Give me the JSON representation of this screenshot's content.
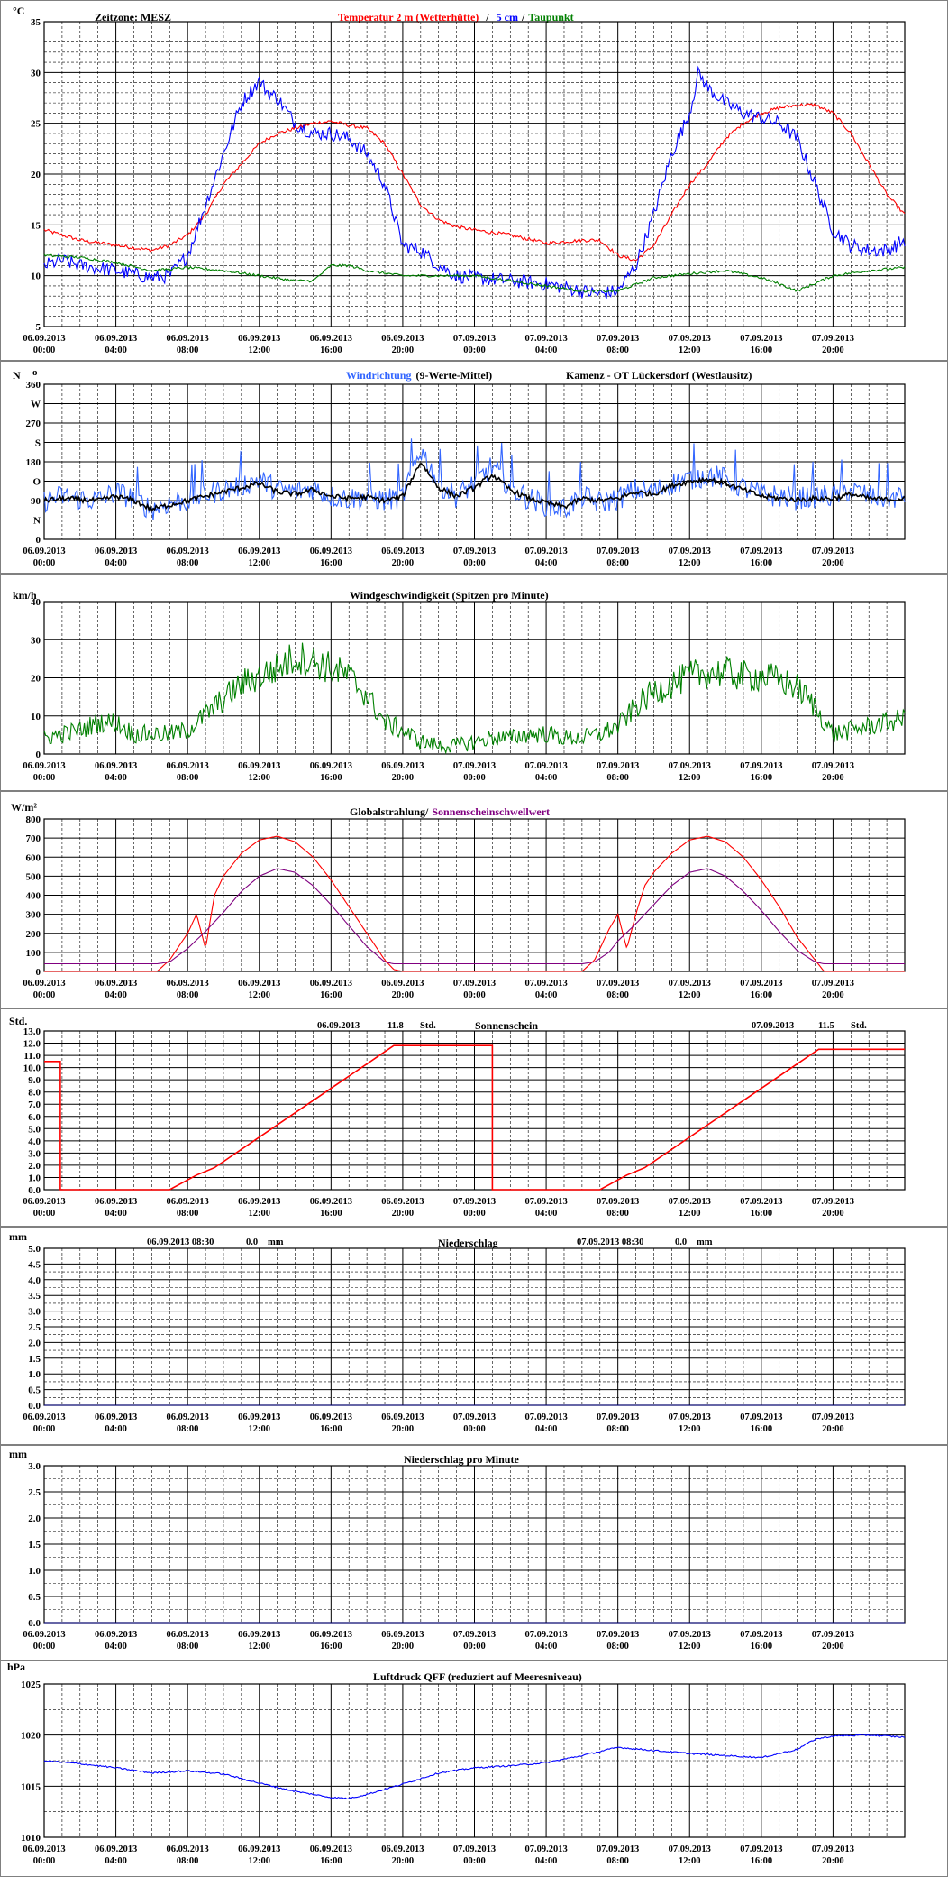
{
  "colors": {
    "red": "#ff0000",
    "blue": "#0000ff",
    "green": "#008000",
    "lightblue": "#3366ff",
    "purple": "#800080",
    "grid": "#000000",
    "panel_border": "#808080"
  },
  "x_axis": {
    "ticks": [
      {
        "date": "06.09.2013",
        "time": "00:00"
      },
      {
        "date": "06.09.2013",
        "time": "04:00"
      },
      {
        "date": "06.09.2013",
        "time": "08:00"
      },
      {
        "date": "06.09.2013",
        "time": "12:00"
      },
      {
        "date": "06.09.2013",
        "time": "16:00"
      },
      {
        "date": "06.09.2013",
        "time": "20:00"
      },
      {
        "date": "07.09.2013",
        "time": "00:00"
      },
      {
        "date": "07.09.2013",
        "time": "04:00"
      },
      {
        "date": "07.09.2013",
        "time": "08:00"
      },
      {
        "date": "07.09.2013",
        "time": "12:00"
      },
      {
        "date": "07.09.2013",
        "time": "16:00"
      },
      {
        "date": "07.09.2013",
        "time": "20:00"
      }
    ],
    "range_hours": [
      0,
      48
    ]
  },
  "panels": {
    "temp": {
      "unit": "°C",
      "zone": "Zeitzone: MESZ",
      "title_red": "Temperatur 2 m (Wetterhütte)",
      "title_sep1": "/",
      "title_blue": "5 cm",
      "title_sep2": "/",
      "title_green": "Taupunkt",
      "yticks": [
        "35",
        "30",
        "25",
        "20",
        "15",
        "10",
        "5"
      ]
    },
    "wind_dir": {
      "unit": "N",
      "deg_mark": "o",
      "title_blue": "Windrichtung",
      "title_black": "(9-Werte-Mittel)",
      "station": "Kamenz - OT Lückersdorf (Westlausitz)",
      "yticks": [
        "360",
        "W",
        "270",
        "S",
        "180",
        "O",
        "90",
        "N",
        "0"
      ]
    },
    "wind_speed": {
      "unit": "km/h",
      "title": "Windgeschwindigkeit (Spitzen pro Minute)",
      "yticks": [
        "40",
        "30",
        "20",
        "10",
        "0"
      ]
    },
    "radiation": {
      "unit": "W/m²",
      "title_black": "Globalstrahlung/",
      "title_purple": "Sonnenscheinschwellwert",
      "yticks": [
        "800",
        "700",
        "600",
        "500",
        "400",
        "300",
        "200",
        "100",
        "0"
      ]
    },
    "sunshine": {
      "unit": "Std.",
      "title": "Sonnenschein",
      "sum1_date": "06.09.2013",
      "sum1_value": "11.8",
      "sum1_unit": "Std.",
      "sum2_date": "07.09.2013",
      "sum2_value": "11.5",
      "sum2_unit": "Std.",
      "yticks": [
        "13.0",
        "12.0",
        "11.0",
        "10.0",
        "9.0",
        "8.0",
        "7.0",
        "6.0",
        "5.0",
        "4.0",
        "3.0",
        "2.0",
        "1.0",
        "0.0"
      ]
    },
    "precip": {
      "unit": "mm",
      "title": "Niederschlag",
      "sum1_label": "06.09.2013 08:30",
      "sum1_value": "0.0",
      "sum1_unit": "mm",
      "sum2_label": "07.09.2013 08:30",
      "sum2_value": "0.0",
      "sum2_unit": "mm",
      "yticks": [
        "5.0",
        "4.5",
        "4.0",
        "3.5",
        "3.0",
        "2.5",
        "2.0",
        "1.5",
        "1.0",
        "0.5",
        "0.0"
      ]
    },
    "precip_min": {
      "unit": "mm",
      "title": "Niederschlag pro Minute",
      "yticks": [
        "3.0",
        "2.5",
        "2.0",
        "1.5",
        "1.0",
        "0.5",
        "0.0"
      ]
    },
    "pressure": {
      "unit": "hPa",
      "title": "Luftdruck QFF (reduziert auf Meeresniveau)",
      "yticks": [
        "1025",
        "1020",
        "1015",
        "1010"
      ]
    }
  },
  "chart_data": [
    {
      "type": "line",
      "title": "Temperatur 2 m (Wetterhütte) / 5 cm / Taupunkt",
      "ylabel": "°C",
      "ylim": [
        5,
        35
      ],
      "x_unit": "hours since 06.09.2013 00:00",
      "series": [
        {
          "name": "Temperatur 2 m (Wetterhütte)",
          "color": "#ff0000",
          "x": [
            0,
            2,
            4,
            6,
            7,
            8,
            9,
            10,
            11,
            12,
            13,
            14,
            15,
            16,
            17,
            18,
            19,
            20,
            21,
            22,
            23,
            24,
            26,
            28,
            30,
            31,
            32,
            33,
            34,
            35,
            36,
            37,
            38,
            39,
            40,
            41,
            42,
            43,
            44,
            45,
            46,
            47,
            48
          ],
          "y": [
            14.5,
            13.5,
            13,
            12.5,
            13,
            14,
            16,
            19,
            21,
            23,
            24,
            24.5,
            25,
            25.2,
            24.8,
            24.5,
            23,
            20,
            17,
            15.5,
            14.8,
            14.5,
            14,
            13.2,
            13.5,
            13.5,
            12,
            11.5,
            13,
            16,
            19,
            21,
            23.5,
            25,
            26,
            26.5,
            26.8,
            26.8,
            26,
            24,
            21,
            18,
            16
          ]
        },
        {
          "name": "5 cm",
          "color": "#0000ff",
          "x": [
            0,
            1,
            2,
            4,
            6,
            7,
            8,
            9,
            10,
            11,
            12,
            12.5,
            13,
            14,
            15,
            16,
            17,
            18,
            19,
            20,
            21,
            22,
            23,
            24,
            26,
            28,
            30,
            31,
            32,
            33,
            34,
            35,
            36,
            36.5,
            37,
            38,
            39,
            40,
            41,
            42,
            43,
            44,
            45,
            46,
            47,
            48
          ],
          "y": [
            11,
            11.5,
            11,
            10.5,
            9.8,
            10,
            12,
            17,
            22,
            27,
            29.2,
            28,
            27.5,
            25,
            24,
            24,
            23.5,
            22,
            19,
            13,
            12.5,
            11,
            10,
            9.8,
            9.5,
            9.2,
            8.5,
            8.2,
            8.5,
            11,
            16,
            22,
            26,
            30,
            28.5,
            27,
            26,
            25.5,
            25,
            23.5,
            19,
            14.5,
            13,
            12.5,
            12.5,
            13.5
          ]
        },
        {
          "name": "Taupunkt",
          "color": "#008000",
          "x": [
            0,
            2,
            4,
            6,
            8,
            10,
            12,
            14,
            15,
            16,
            17,
            18,
            20,
            22,
            24,
            26,
            28,
            30,
            32,
            34,
            36,
            38,
            40,
            41,
            42,
            44,
            46,
            48
          ],
          "y": [
            12,
            11.8,
            11.3,
            10.5,
            10.8,
            10.5,
            10,
            9.5,
            9.5,
            11,
            11,
            10.5,
            10,
            10,
            10,
            9.5,
            9,
            8.5,
            8.5,
            9.8,
            10.2,
            10.5,
            9.8,
            9.2,
            8.5,
            10,
            10.5,
            10.8
          ]
        }
      ]
    },
    {
      "type": "line",
      "title": "Windrichtung (9-Werte-Mittel)",
      "ylabel": "°",
      "ylim": [
        0,
        360
      ],
      "series": [
        {
          "name": "Windrichtung",
          "color": "#3366ff",
          "x": [
            0,
            1,
            2,
            3,
            4,
            5,
            6,
            7,
            8,
            9,
            10,
            11,
            12,
            13,
            14,
            15,
            16,
            17,
            18,
            19,
            20,
            21,
            22,
            23,
            24,
            25,
            26,
            27,
            28,
            29,
            30,
            31,
            32,
            33,
            34,
            35,
            36,
            37,
            38,
            39,
            40,
            41,
            42,
            43,
            44,
            45,
            46,
            47,
            48
          ],
          "y": [
            90,
            100,
            95,
            90,
            110,
            95,
            70,
            85,
            90,
            105,
            115,
            125,
            140,
            115,
            110,
            120,
            100,
            95,
            100,
            90,
            100,
            210,
            130,
            100,
            130,
            170,
            120,
            95,
            80,
            70,
            100,
            85,
            95,
            115,
            110,
            130,
            140,
            150,
            140,
            120,
            105,
            100,
            95,
            100,
            100,
            115,
            100,
            95,
            100
          ]
        },
        {
          "name": "9-Werte-Mittel",
          "color": "#000000",
          "x": [
            0,
            1,
            2,
            3,
            4,
            5,
            6,
            7,
            8,
            9,
            10,
            11,
            12,
            13,
            14,
            15,
            16,
            17,
            18,
            19,
            20,
            21,
            22,
            23,
            24,
            25,
            26,
            27,
            28,
            29,
            30,
            31,
            32,
            33,
            34,
            35,
            36,
            37,
            38,
            39,
            40,
            41,
            42,
            43,
            44,
            45,
            46,
            47,
            48
          ],
          "y": [
            90,
            95,
            92,
            90,
            100,
            90,
            70,
            80,
            90,
            100,
            110,
            120,
            130,
            110,
            105,
            115,
            100,
            95,
            98,
            90,
            100,
            180,
            120,
            100,
            120,
            150,
            115,
            95,
            85,
            75,
            95,
            90,
            95,
            110,
            105,
            125,
            135,
            140,
            130,
            115,
            100,
            95,
            92,
            95,
            95,
            105,
            95,
            92,
            95
          ]
        }
      ]
    },
    {
      "type": "line",
      "title": "Windgeschwindigkeit (Spitzen pro Minute)",
      "ylabel": "km/h",
      "ylim": [
        0,
        40
      ],
      "series": [
        {
          "name": "Windgeschwindigkeit",
          "color": "#008000",
          "x": [
            0,
            1,
            2,
            3,
            4,
            5,
            6,
            7,
            8,
            9,
            10,
            11,
            12,
            13,
            14,
            15,
            16,
            17,
            18,
            19,
            20,
            21,
            22,
            23,
            24,
            25,
            26,
            27,
            28,
            29,
            30,
            31,
            32,
            33,
            34,
            35,
            36,
            37,
            38,
            39,
            40,
            41,
            42,
            43,
            44,
            45,
            46,
            47,
            48
          ],
          "y": [
            4,
            5,
            6,
            8,
            8,
            5,
            5,
            5,
            6,
            10,
            14,
            18,
            20,
            22,
            25,
            24,
            22,
            20,
            15,
            8,
            6,
            3,
            2,
            2,
            3,
            4,
            4,
            5,
            5,
            4,
            4,
            5,
            7,
            12,
            16,
            18,
            20,
            21,
            21,
            20,
            20,
            19,
            17,
            12,
            5,
            6,
            7,
            8,
            9
          ]
        }
      ]
    },
    {
      "type": "line",
      "title": "Globalstrahlung/ Sonnenscheinschwellwert",
      "ylabel": "W/m²",
      "ylim": [
        0,
        800
      ],
      "series": [
        {
          "name": "Globalstrahlung",
          "color": "#ff0000",
          "x": [
            0,
            6.3,
            7,
            8,
            8.5,
            9,
            9.5,
            10,
            11,
            12,
            13,
            14,
            15,
            16,
            17,
            18,
            19,
            19.5,
            20,
            30,
            30.7,
            31.5,
            32,
            32.5,
            33,
            33.5,
            34,
            35,
            36,
            37,
            38,
            39,
            40,
            41,
            42,
            43,
            43.5,
            48
          ],
          "y": [
            0,
            0,
            60,
            200,
            300,
            120,
            400,
            500,
            620,
            690,
            710,
            680,
            600,
            480,
            340,
            200,
            60,
            10,
            0,
            0,
            60,
            220,
            300,
            120,
            300,
            450,
            520,
            620,
            690,
            710,
            680,
            600,
            480,
            340,
            180,
            60,
            0,
            0
          ]
        },
        {
          "name": "Sonnenscheinschwellwert",
          "color": "#800080",
          "x": [
            0,
            6.3,
            7,
            8,
            9,
            10,
            11,
            12,
            13,
            14,
            15,
            16,
            17,
            18,
            19,
            19.5,
            20,
            30,
            30.7,
            31.5,
            32,
            33,
            34,
            35,
            36,
            37,
            38,
            39,
            40,
            41,
            42,
            43,
            43.5,
            48
          ],
          "y": [
            40,
            40,
            50,
            120,
            210,
            310,
            420,
            500,
            540,
            520,
            450,
            350,
            240,
            130,
            50,
            40,
            40,
            40,
            50,
            100,
            160,
            250,
            350,
            450,
            520,
            540,
            500,
            420,
            320,
            210,
            110,
            50,
            40,
            40
          ]
        }
      ]
    },
    {
      "type": "line",
      "title": "Sonnenschein",
      "ylabel": "Std.",
      "ylim": [
        0,
        13
      ],
      "series": [
        {
          "name": "Sonnenschein",
          "color": "#ff0000",
          "x": [
            0,
            0.9,
            0.9,
            7,
            8.5,
            9.5,
            19.5,
            25,
            25,
            31,
            32.5,
            33.5,
            43.2,
            48
          ],
          "y": [
            10.5,
            10.5,
            0,
            0,
            1.2,
            1.8,
            11.8,
            11.8,
            0,
            0,
            1.2,
            1.8,
            11.5,
            11.5
          ]
        }
      ]
    },
    {
      "type": "line",
      "title": "Niederschlag",
      "ylabel": "mm",
      "ylim": [
        0,
        5
      ],
      "series": [
        {
          "name": "Niederschlag",
          "color": "#000080",
          "x": [
            0,
            48
          ],
          "y": [
            0,
            0
          ]
        }
      ]
    },
    {
      "type": "line",
      "title": "Niederschlag pro Minute",
      "ylabel": "mm",
      "ylim": [
        0,
        3
      ],
      "series": [
        {
          "name": "Niederschlag pro Minute",
          "color": "#000080",
          "x": [
            0,
            48
          ],
          "y": [
            0,
            0
          ]
        }
      ]
    },
    {
      "type": "line",
      "title": "Luftdruck QFF (reduziert auf Meeresniveau)",
      "ylabel": "hPa",
      "ylim": [
        1010,
        1025
      ],
      "series": [
        {
          "name": "Luftdruck QFF",
          "color": "#0000ff",
          "x": [
            0,
            2,
            4,
            6,
            8,
            10,
            12,
            14,
            16,
            17,
            18,
            20,
            22,
            24,
            26,
            28,
            30,
            32,
            34,
            36,
            38,
            40,
            41,
            42,
            43,
            44,
            46,
            48
          ],
          "y": [
            1017.5,
            1017.2,
            1016.8,
            1016.3,
            1016.5,
            1016.2,
            1015.3,
            1014.5,
            1013.9,
            1013.8,
            1014.2,
            1015.2,
            1016.3,
            1016.8,
            1017.0,
            1017.3,
            1018.0,
            1018.8,
            1018.5,
            1018.2,
            1018.0,
            1017.8,
            1018.2,
            1018.6,
            1019.6,
            1019.9,
            1020.0,
            1019.8
          ]
        }
      ]
    }
  ]
}
